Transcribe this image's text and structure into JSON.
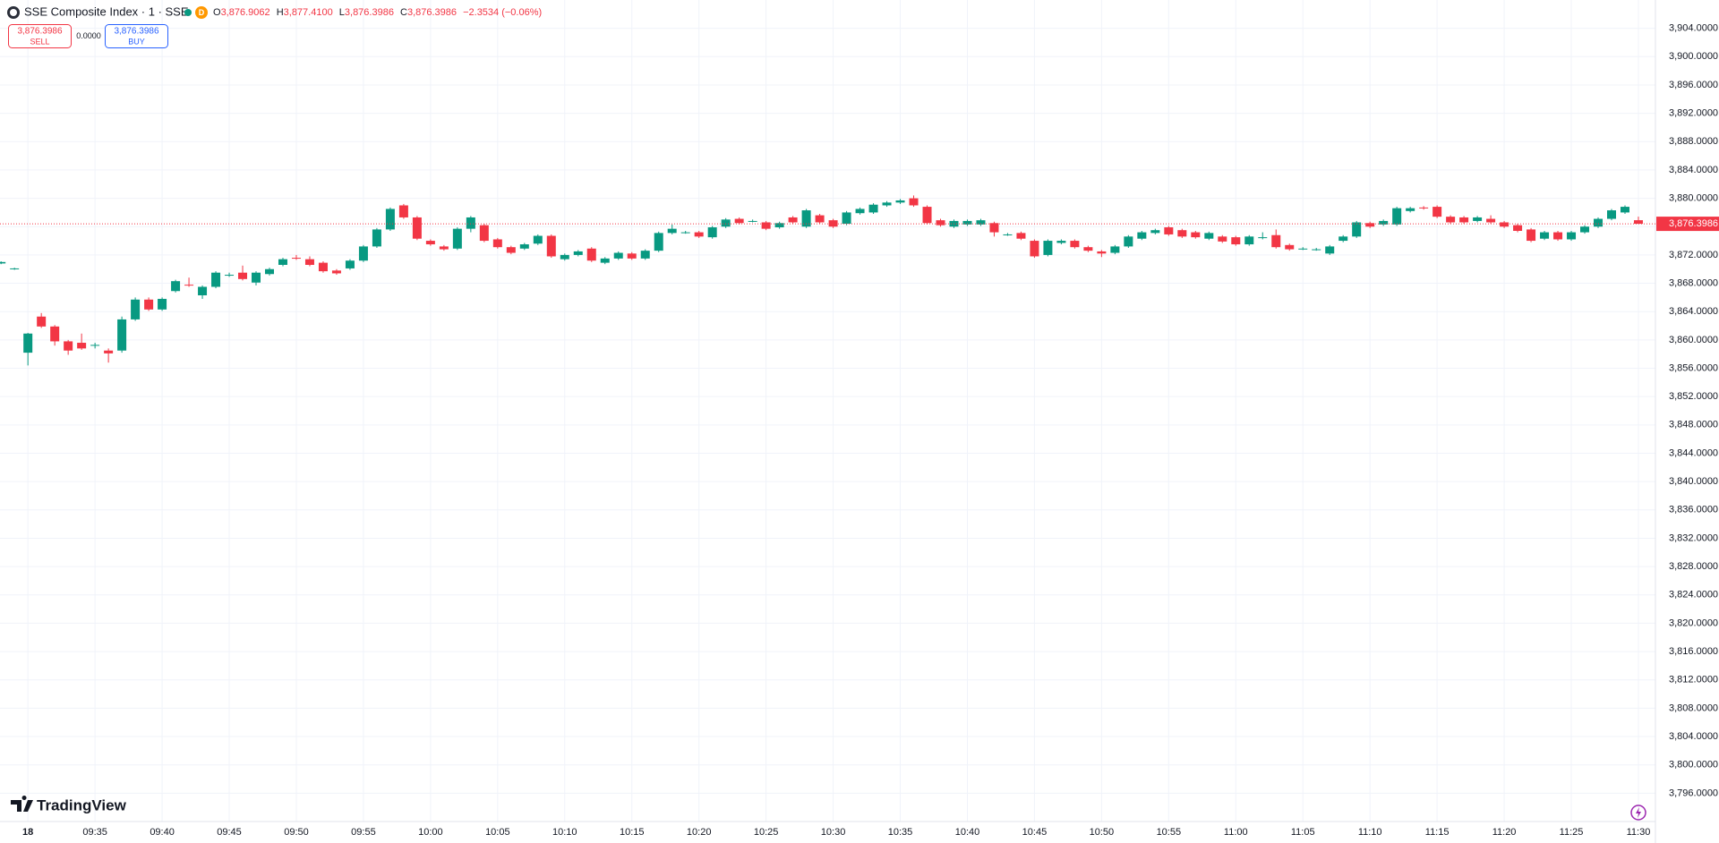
{
  "header": {
    "symbol": "SSE Composite Index · 1 · SSE",
    "badge": "D",
    "ohlc": [
      {
        "letter": "O",
        "value": "3,876.9062"
      },
      {
        "letter": "H",
        "value": "3,877.4100"
      },
      {
        "letter": "L",
        "value": "3,876.3986"
      },
      {
        "letter": "C",
        "value": "3,876.3986"
      }
    ],
    "change": "−2.3534 (−0.06%)"
  },
  "trade": {
    "sell_price": "3,876.3986",
    "sell_label": "SELL",
    "spread": "0.0000",
    "buy_price": "3,876.3986",
    "buy_label": "BUY"
  },
  "logo": "TradingView",
  "chart_data": {
    "type": "candlestick",
    "up_color": "#089981",
    "down_color": "#f23645",
    "grid": true,
    "last_price": {
      "value": 3876.3986,
      "label": "3,876.3986"
    },
    "ylim": [
      3792,
      3908
    ],
    "yticks": [
      {
        "value": 3796,
        "label": "3,796.0000"
      },
      {
        "value": 3800,
        "label": "3,800.0000"
      },
      {
        "value": 3804,
        "label": "3,804.0000"
      },
      {
        "value": 3808,
        "label": "3,808.0000"
      },
      {
        "value": 3812,
        "label": "3,812.0000"
      },
      {
        "value": 3816,
        "label": "3,816.0000"
      },
      {
        "value": 3820,
        "label": "3,820.0000"
      },
      {
        "value": 3824,
        "label": "3,824.0000"
      },
      {
        "value": 3828,
        "label": "3,828.0000"
      },
      {
        "value": 3832,
        "label": "3,832.0000"
      },
      {
        "value": 3836,
        "label": "3,836.0000"
      },
      {
        "value": 3840,
        "label": "3,840.0000"
      },
      {
        "value": 3844,
        "label": "3,844.0000"
      },
      {
        "value": 3848,
        "label": "3,848.0000"
      },
      {
        "value": 3852,
        "label": "3,852.0000"
      },
      {
        "value": 3856,
        "label": "3,856.0000"
      },
      {
        "value": 3860,
        "label": "3,860.0000"
      },
      {
        "value": 3864,
        "label": "3,864.0000"
      },
      {
        "value": 3868,
        "label": "3,868.0000"
      },
      {
        "value": 3872,
        "label": "3,872.0000"
      },
      {
        "value": 3876,
        "label": "3,876.0000"
      },
      {
        "value": 3880,
        "label": "3,880.0000"
      },
      {
        "value": 3884,
        "label": "3,884.0000"
      },
      {
        "value": 3888,
        "label": "3,888.0000"
      },
      {
        "value": 3892,
        "label": "3,892.0000"
      },
      {
        "value": 3896,
        "label": "3,896.0000"
      },
      {
        "value": 3900,
        "label": "3,900.0000"
      },
      {
        "value": 3904,
        "label": "3,904.0000"
      }
    ],
    "categories": [
      null,
      null,
      "18",
      null,
      null,
      null,
      null,
      "09:35",
      null,
      null,
      null,
      null,
      "09:40",
      null,
      null,
      null,
      null,
      "09:45",
      null,
      null,
      null,
      null,
      "09:50",
      null,
      null,
      null,
      null,
      "09:55",
      null,
      null,
      null,
      null,
      "10:00",
      null,
      null,
      null,
      null,
      "10:05",
      null,
      null,
      null,
      null,
      "10:10",
      null,
      null,
      null,
      null,
      "10:15",
      null,
      null,
      null,
      null,
      "10:20",
      null,
      null,
      null,
      null,
      "10:25",
      null,
      null,
      null,
      null,
      "10:30",
      null,
      null,
      null,
      null,
      "10:35",
      null,
      null,
      null,
      null,
      "10:40",
      null,
      null,
      null,
      null,
      "10:45",
      null,
      null,
      null,
      null,
      "10:50",
      null,
      null,
      null,
      null,
      "10:55",
      null,
      null,
      null,
      null,
      "11:00",
      null,
      null,
      null,
      null,
      "11:05",
      null,
      null,
      null,
      null,
      "11:10",
      null,
      null,
      null,
      null,
      "11:15",
      null,
      null,
      null,
      null,
      "11:20",
      null,
      null,
      null,
      null,
      "11:25",
      null,
      null,
      null,
      null,
      "11:30"
    ],
    "candles": [
      [
        3870.8,
        3871.1,
        3870.7,
        3871.0
      ],
      [
        3870.1,
        3870.2,
        3869.9,
        3870.1
      ],
      [
        3858.2,
        3861.0,
        3856.4,
        3860.9
      ],
      [
        3863.3,
        3863.8,
        3861.7,
        3861.9
      ],
      [
        3861.9,
        3862.1,
        3859.2,
        3859.8
      ],
      [
        3859.8,
        3860.0,
        3857.9,
        3858.5
      ],
      [
        3859.6,
        3860.9,
        3858.6,
        3858.8
      ],
      [
        3859.2,
        3859.6,
        3858.8,
        3859.3
      ],
      [
        3858.5,
        3858.8,
        3856.8,
        3858.1
      ],
      [
        3858.5,
        3863.3,
        3858.2,
        3862.9
      ],
      [
        3862.9,
        3866.0,
        3862.7,
        3865.7
      ],
      [
        3865.7,
        3866.0,
        3864.1,
        3864.3
      ],
      [
        3864.3,
        3866.0,
        3864.1,
        3865.8
      ],
      [
        3866.9,
        3868.5,
        3866.7,
        3868.3
      ],
      [
        3867.8,
        3868.8,
        3867.5,
        3867.7
      ],
      [
        3866.3,
        3867.7,
        3865.8,
        3867.5
      ],
      [
        3867.5,
        3869.7,
        3867.3,
        3869.5
      ],
      [
        3869.1,
        3869.5,
        3868.9,
        3869.2
      ],
      [
        3869.5,
        3870.5,
        3868.4,
        3868.6
      ],
      [
        3868.1,
        3869.7,
        3867.7,
        3869.5
      ],
      [
        3869.3,
        3870.2,
        3869.1,
        3870.0
      ],
      [
        3870.6,
        3871.6,
        3870.4,
        3871.4
      ],
      [
        3871.6,
        3872.0,
        3871.3,
        3871.5
      ],
      [
        3871.4,
        3871.8,
        3870.4,
        3870.6
      ],
      [
        3870.9,
        3871.1,
        3869.5,
        3869.7
      ],
      [
        3869.8,
        3870.0,
        3869.2,
        3869.4
      ],
      [
        3870.1,
        3871.4,
        3869.9,
        3871.2
      ],
      [
        3871.2,
        3873.4,
        3871.0,
        3873.2
      ],
      [
        3873.2,
        3875.8,
        3873.0,
        3875.6
      ],
      [
        3875.6,
        3878.7,
        3875.4,
        3878.5
      ],
      [
        3879.0,
        3879.2,
        3877.1,
        3877.3
      ],
      [
        3877.3,
        3877.5,
        3874.1,
        3874.3
      ],
      [
        3874.0,
        3874.2,
        3873.3,
        3873.5
      ],
      [
        3873.2,
        3873.4,
        3872.6,
        3872.8
      ],
      [
        3872.9,
        3875.9,
        3872.7,
        3875.7
      ],
      [
        3875.7,
        3877.5,
        3875.2,
        3877.3
      ],
      [
        3876.2,
        3876.4,
        3873.8,
        3874.0
      ],
      [
        3874.2,
        3874.4,
        3872.9,
        3873.1
      ],
      [
        3873.1,
        3873.3,
        3872.1,
        3872.3
      ],
      [
        3872.9,
        3873.7,
        3872.7,
        3873.5
      ],
      [
        3873.6,
        3874.9,
        3873.4,
        3874.7
      ],
      [
        3874.7,
        3874.9,
        3871.6,
        3871.8
      ],
      [
        3871.4,
        3872.2,
        3871.2,
        3872.0
      ],
      [
        3872.0,
        3872.7,
        3871.8,
        3872.5
      ],
      [
        3872.9,
        3873.1,
        3871.0,
        3871.2
      ],
      [
        3870.9,
        3871.7,
        3870.7,
        3871.5
      ],
      [
        3871.5,
        3872.5,
        3871.3,
        3872.3
      ],
      [
        3872.2,
        3872.4,
        3871.3,
        3871.5
      ],
      [
        3871.5,
        3872.8,
        3871.3,
        3872.6
      ],
      [
        3872.6,
        3875.3,
        3872.4,
        3875.1
      ],
      [
        3875.1,
        3876.3,
        3874.9,
        3875.7
      ],
      [
        3875.2,
        3875.4,
        3875.0,
        3875.2
      ],
      [
        3875.2,
        3875.4,
        3874.4,
        3874.6
      ],
      [
        3874.5,
        3876.1,
        3874.3,
        3875.9
      ],
      [
        3876.0,
        3877.2,
        3875.8,
        3877.0
      ],
      [
        3877.1,
        3877.3,
        3876.3,
        3876.5
      ],
      [
        3876.8,
        3877.0,
        3876.6,
        3876.8
      ],
      [
        3876.6,
        3876.8,
        3875.5,
        3875.7
      ],
      [
        3875.9,
        3876.7,
        3875.7,
        3876.5
      ],
      [
        3877.3,
        3877.5,
        3876.4,
        3876.6
      ],
      [
        3876.0,
        3878.5,
        3875.8,
        3878.3
      ],
      [
        3877.6,
        3877.8,
        3876.4,
        3876.6
      ],
      [
        3876.9,
        3877.1,
        3875.8,
        3876.0
      ],
      [
        3876.4,
        3878.2,
        3876.2,
        3878.0
      ],
      [
        3877.9,
        3878.7,
        3877.7,
        3878.5
      ],
      [
        3878.0,
        3879.3,
        3877.8,
        3879.1
      ],
      [
        3879.0,
        3879.6,
        3878.8,
        3879.4
      ],
      [
        3879.4,
        3879.9,
        3879.2,
        3879.7
      ],
      [
        3880.0,
        3880.4,
        3878.8,
        3879.0
      ],
      [
        3878.8,
        3879.0,
        3876.3,
        3876.5
      ],
      [
        3876.9,
        3877.1,
        3876.0,
        3876.2
      ],
      [
        3876.0,
        3877.0,
        3875.8,
        3876.8
      ],
      [
        3876.3,
        3877.0,
        3876.1,
        3876.8
      ],
      [
        3876.3,
        3877.1,
        3876.1,
        3876.9
      ],
      [
        3876.5,
        3876.7,
        3874.6,
        3875.2
      ],
      [
        3874.9,
        3875.1,
        3874.7,
        3874.9
      ],
      [
        3875.1,
        3875.3,
        3874.1,
        3874.3
      ],
      [
        3874.0,
        3874.2,
        3871.6,
        3871.8
      ],
      [
        3872.0,
        3874.2,
        3871.8,
        3874.0
      ],
      [
        3873.7,
        3874.2,
        3873.5,
        3874.0
      ],
      [
        3874.0,
        3874.2,
        3872.9,
        3873.1
      ],
      [
        3873.1,
        3873.3,
        3872.4,
        3872.6
      ],
      [
        3872.5,
        3872.7,
        3871.7,
        3872.2
      ],
      [
        3872.3,
        3873.4,
        3872.1,
        3873.2
      ],
      [
        3873.2,
        3874.8,
        3873.0,
        3874.6
      ],
      [
        3874.3,
        3875.4,
        3874.1,
        3875.2
      ],
      [
        3875.1,
        3875.7,
        3874.9,
        3875.5
      ],
      [
        3875.9,
        3876.1,
        3874.7,
        3874.9
      ],
      [
        3875.5,
        3875.7,
        3874.4,
        3874.6
      ],
      [
        3875.2,
        3875.4,
        3874.3,
        3874.5
      ],
      [
        3874.3,
        3875.3,
        3874.1,
        3875.1
      ],
      [
        3874.6,
        3874.8,
        3873.7,
        3873.9
      ],
      [
        3874.5,
        3874.7,
        3873.3,
        3873.5
      ],
      [
        3873.5,
        3874.8,
        3873.3,
        3874.6
      ],
      [
        3874.4,
        3875.2,
        3874.2,
        3874.5
      ],
      [
        3874.8,
        3875.6,
        3872.9,
        3873.1
      ],
      [
        3873.4,
        3873.6,
        3872.6,
        3872.8
      ],
      [
        3872.9,
        3873.1,
        3872.7,
        3872.9
      ],
      [
        3872.8,
        3873.0,
        3872.6,
        3872.8
      ],
      [
        3872.2,
        3873.4,
        3872.0,
        3873.2
      ],
      [
        3874.0,
        3874.8,
        3873.8,
        3874.6
      ],
      [
        3874.6,
        3876.8,
        3874.4,
        3876.6
      ],
      [
        3876.5,
        3876.7,
        3875.8,
        3876.0
      ],
      [
        3876.3,
        3877.0,
        3876.1,
        3876.8
      ],
      [
        3876.3,
        3878.8,
        3876.1,
        3878.6
      ],
      [
        3878.2,
        3878.8,
        3878.0,
        3878.6
      ],
      [
        3878.7,
        3878.9,
        3878.4,
        3878.6
      ],
      [
        3878.8,
        3879.0,
        3877.2,
        3877.4
      ],
      [
        3877.4,
        3877.6,
        3876.4,
        3876.6
      ],
      [
        3877.3,
        3877.5,
        3876.4,
        3876.6
      ],
      [
        3876.8,
        3877.5,
        3876.6,
        3877.3
      ],
      [
        3877.1,
        3877.6,
        3876.4,
        3876.6
      ],
      [
        3876.6,
        3876.8,
        3875.8,
        3876.0
      ],
      [
        3876.2,
        3876.4,
        3875.2,
        3875.4
      ],
      [
        3875.6,
        3875.8,
        3873.8,
        3874.0
      ],
      [
        3874.3,
        3875.4,
        3874.1,
        3875.2
      ],
      [
        3875.2,
        3875.4,
        3874.0,
        3874.2
      ],
      [
        3874.2,
        3875.4,
        3874.0,
        3875.2
      ],
      [
        3875.2,
        3876.2,
        3875.0,
        3876.0
      ],
      [
        3876.0,
        3877.3,
        3875.8,
        3877.1
      ],
      [
        3877.1,
        3878.5,
        3876.9,
        3878.3
      ],
      [
        3878.0,
        3879.0,
        3877.8,
        3878.8
      ],
      [
        3876.9062,
        3877.41,
        3876.3986,
        3876.3986
      ]
    ]
  }
}
